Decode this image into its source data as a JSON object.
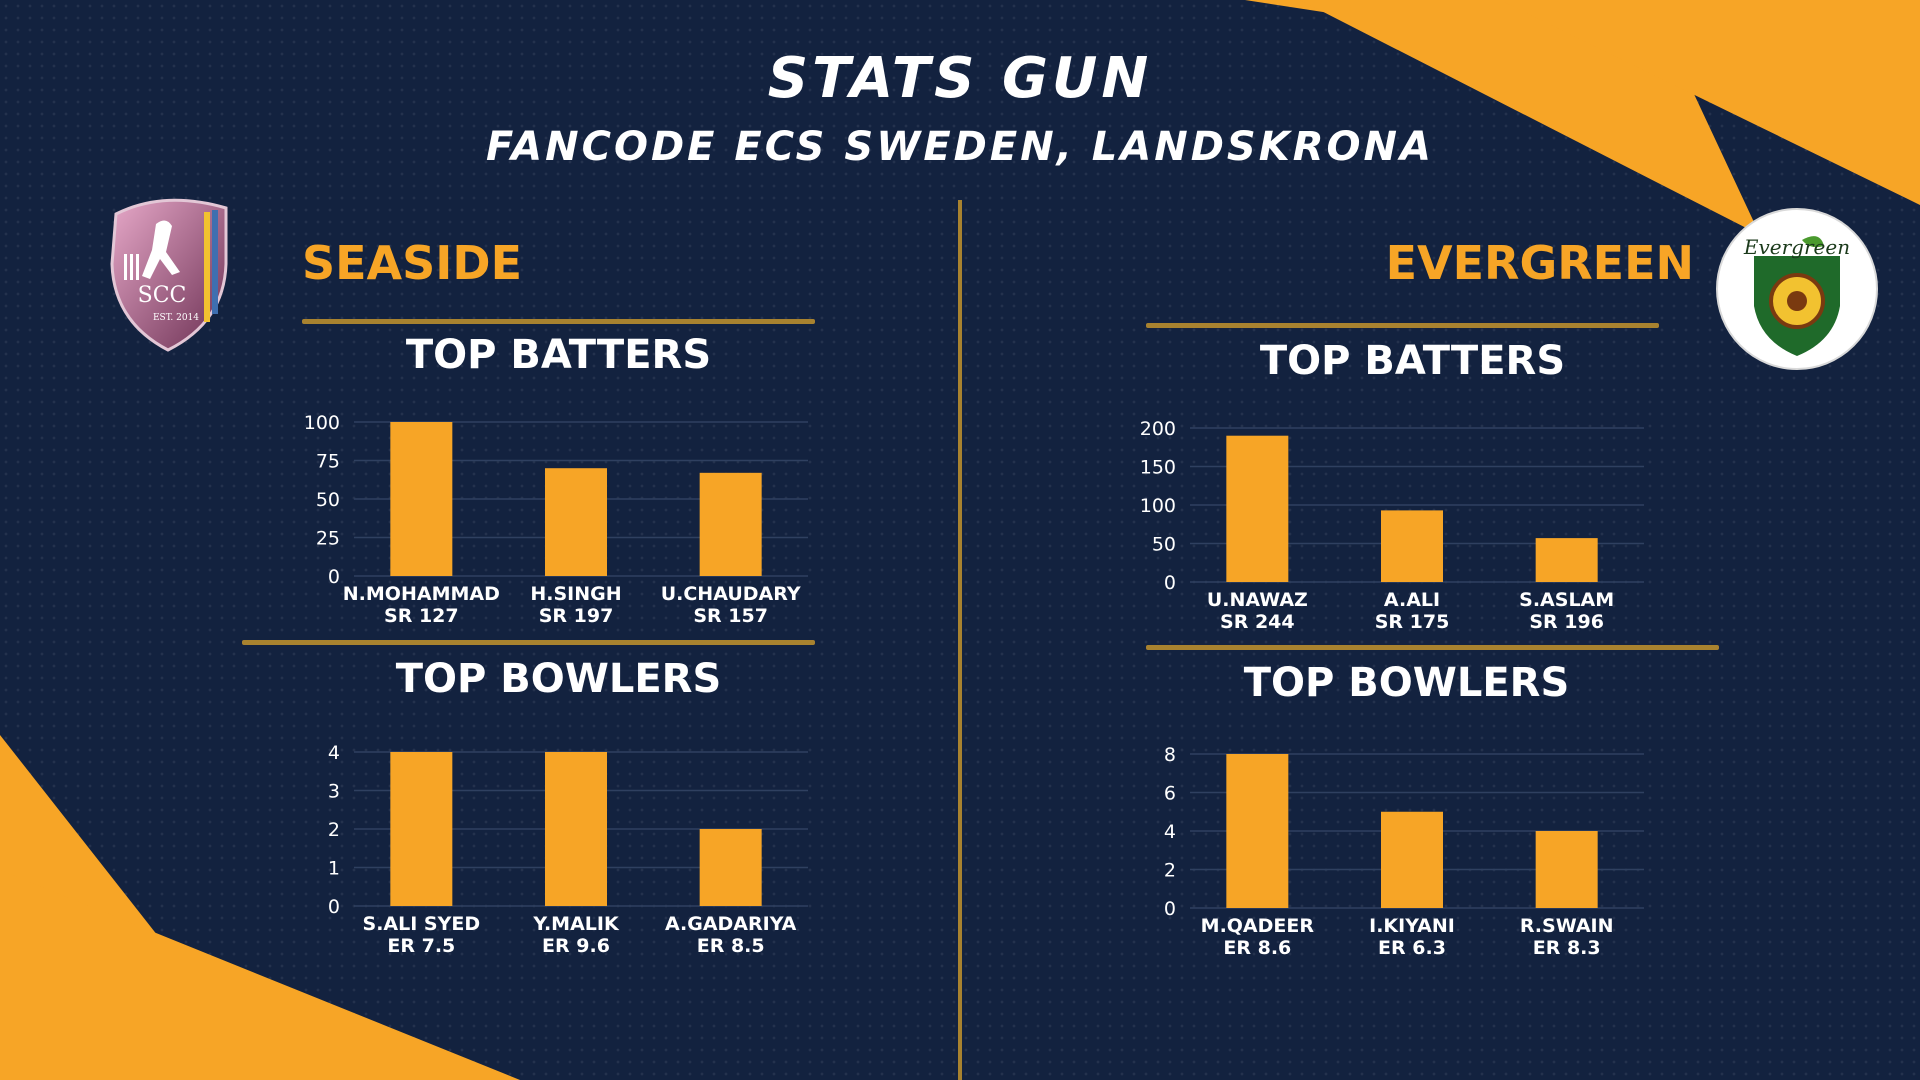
{
  "header": {
    "title": "STATS GUN",
    "subtitle": "FANCODE ECS SWEDEN, LANDSKRONA"
  },
  "colors": {
    "background": "#13223f",
    "accent": "#f7a526",
    "rule": "#a8822f",
    "grid": "#2f4060"
  },
  "teams": [
    {
      "name": "SEASIDE",
      "logo": {
        "icon": "scc-shield-logo",
        "text": "SCC",
        "est": "EST. 2014"
      }
    },
    {
      "name": "EVERGREEN",
      "logo": {
        "icon": "evergreen-circle-logo",
        "text": "Evergreen"
      }
    }
  ],
  "chart_data": [
    {
      "type": "bar",
      "team": "SEASIDE",
      "title": "TOP BATTERS",
      "ylim": [
        0,
        100
      ],
      "yticks": [
        "0",
        "25",
        "50",
        "75",
        "100"
      ],
      "categories": [
        "N.MOHAMMAD",
        "H.SINGH",
        "U.CHAUDARY"
      ],
      "sublabels": [
        "SR 127",
        "SR 197",
        "SR 157"
      ],
      "values": [
        100,
        70,
        67
      ],
      "grid": true
    },
    {
      "type": "bar",
      "team": "SEASIDE",
      "title": "TOP BOWLERS",
      "ylim": [
        0,
        4
      ],
      "yticks": [
        "0",
        "1",
        "2",
        "3",
        "4"
      ],
      "categories": [
        "S.ALI SYED",
        "Y.MALIK",
        "A.GADARIYA"
      ],
      "sublabels": [
        "ER 7.5",
        "ER 9.6",
        "ER 8.5"
      ],
      "values": [
        4,
        4,
        2
      ],
      "grid": true
    },
    {
      "type": "bar",
      "team": "EVERGREEN",
      "title": "TOP BATTERS",
      "ylim": [
        0,
        200
      ],
      "yticks": [
        "0",
        "50",
        "100",
        "150",
        "200"
      ],
      "categories": [
        "U.NAWAZ",
        "A.ALI",
        "S.ASLAM"
      ],
      "sublabels": [
        "SR 244",
        "SR 175",
        "SR 196"
      ],
      "values": [
        190,
        93,
        57
      ],
      "grid": true
    },
    {
      "type": "bar",
      "team": "EVERGREEN",
      "title": "TOP BOWLERS",
      "ylim": [
        0,
        8
      ],
      "yticks": [
        "0",
        "2",
        "4",
        "6",
        "8"
      ],
      "categories": [
        "M.QADEER",
        "I.KIYANI",
        "R.SWAIN"
      ],
      "sublabels": [
        "ER 8.6",
        "ER 6.3",
        "ER 8.3"
      ],
      "values": [
        8,
        5,
        4
      ],
      "grid": true
    }
  ]
}
